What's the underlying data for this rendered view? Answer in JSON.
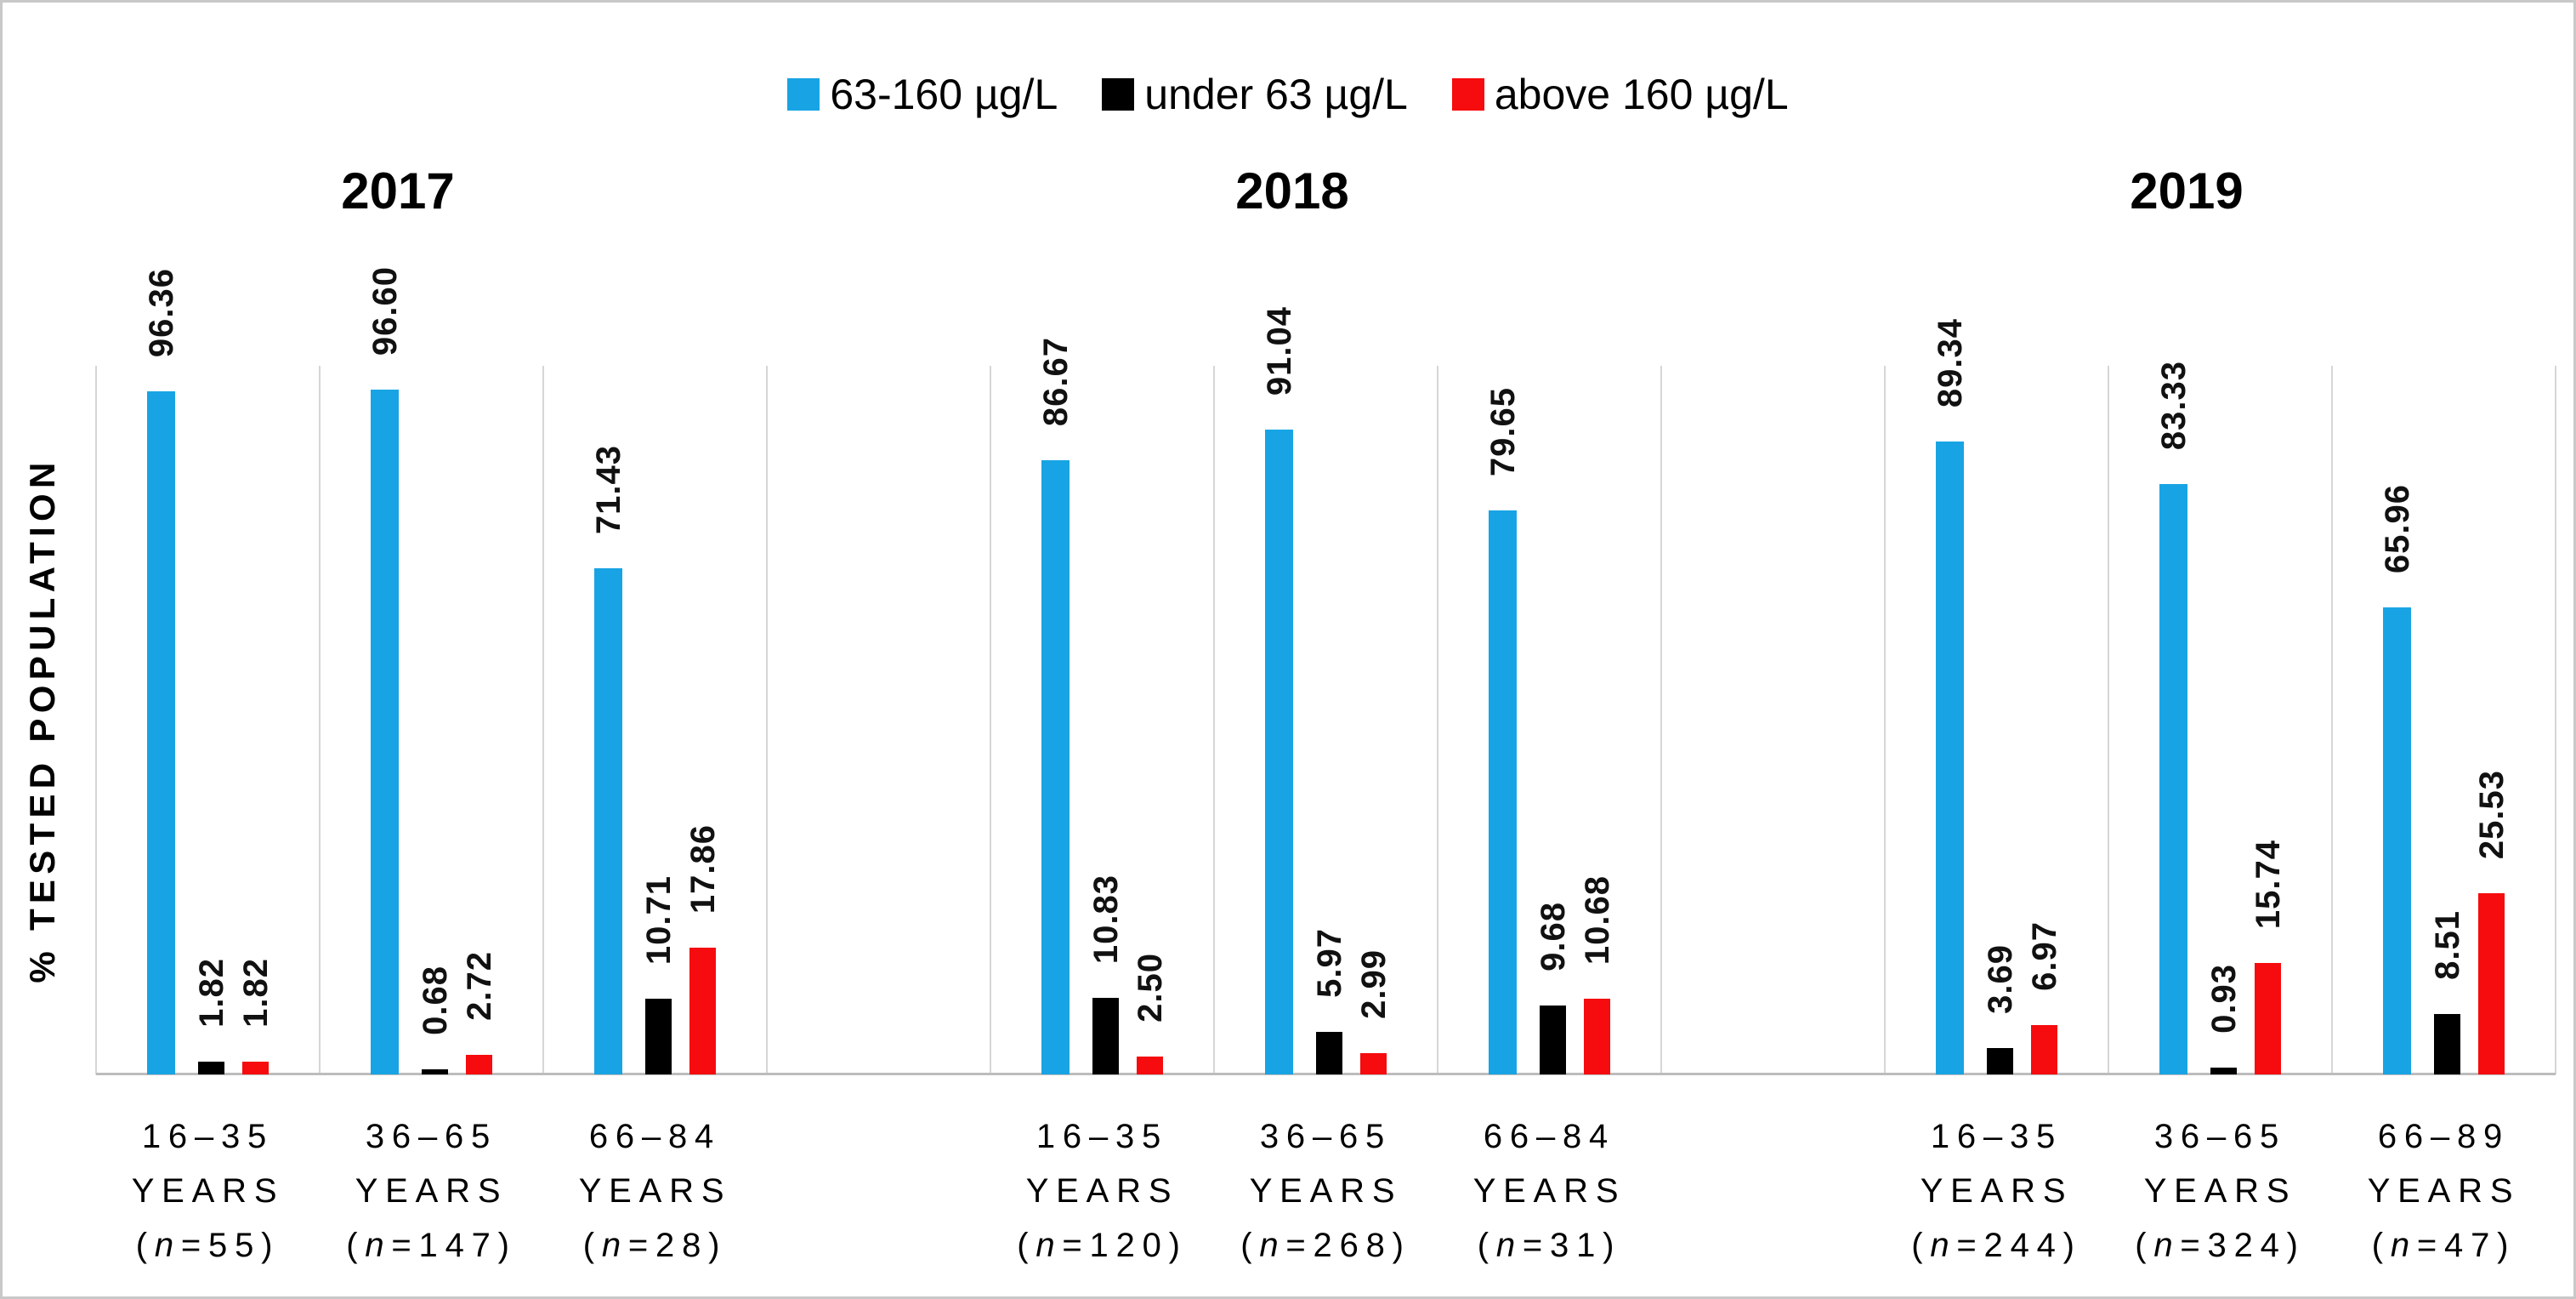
{
  "figure": {
    "background": "#ffffff",
    "border_color": "#c8c8c8"
  },
  "chart_data": {
    "type": "bar",
    "title": "",
    "ylabel": "% TESTED POPULATION",
    "ylim": [
      0,
      100
    ],
    "grid": "vertical-slot-separators",
    "legend_position": "top-center",
    "series": [
      {
        "name": "63-160 µg/L",
        "color": "#18a4e4"
      },
      {
        "name": "under 63 µg/L",
        "color": "#000000"
      },
      {
        "name": "above 160 µg/L",
        "color": "#f60b0e"
      }
    ],
    "sections": [
      {
        "year": "2017",
        "groups": [
          {
            "age_range": "16–35",
            "age_unit": "YEARS",
            "n_label": "(n=55)",
            "values": [
              96.36,
              1.82,
              1.82
            ],
            "value_labels": [
              "96.36",
              "1.82",
              "1.82"
            ]
          },
          {
            "age_range": "36–65",
            "age_unit": "YEARS",
            "n_label": "(n=147)",
            "values": [
              96.6,
              0.68,
              2.72
            ],
            "value_labels": [
              "96.60",
              "0.68",
              "2.72"
            ]
          },
          {
            "age_range": "66–84",
            "age_unit": "YEARS",
            "n_label": "(n=28)",
            "values": [
              71.43,
              10.71,
              17.86
            ],
            "value_labels": [
              "71.43",
              "10.71",
              "17.86"
            ]
          }
        ]
      },
      {
        "year": "2018",
        "groups": [
          {
            "age_range": "16–35",
            "age_unit": "YEARS",
            "n_label": "(n=120)",
            "values": [
              86.67,
              10.83,
              2.5
            ],
            "value_labels": [
              "86.67",
              "10.83",
              "2.50"
            ]
          },
          {
            "age_range": "36–65",
            "age_unit": "YEARS",
            "n_label": "(n=268)",
            "values": [
              91.04,
              5.97,
              2.99
            ],
            "value_labels": [
              "91.04",
              "5.97",
              "2.99"
            ]
          },
          {
            "age_range": "66–84",
            "age_unit": "YEARS",
            "n_label": "(n=31)",
            "values": [
              79.65,
              9.68,
              10.68
            ],
            "value_labels": [
              "79.65",
              "9.68",
              "10.68"
            ]
          }
        ]
      },
      {
        "year": "2019",
        "groups": [
          {
            "age_range": "16–35",
            "age_unit": "YEARS",
            "n_label": "(n=244)",
            "values": [
              89.34,
              3.69,
              6.97
            ],
            "value_labels": [
              "89.34",
              "3.69",
              "6.97"
            ]
          },
          {
            "age_range": "36–65",
            "age_unit": "YEARS",
            "n_label": "(n=324)",
            "values": [
              83.33,
              0.93,
              15.74
            ],
            "value_labels": [
              "83.33",
              "0.93",
              "15.74"
            ]
          },
          {
            "age_range": "66–89",
            "age_unit": "YEARS",
            "n_label": "(n=47)",
            "values": [
              65.96,
              8.51,
              25.53
            ],
            "value_labels": [
              "65.96",
              "8.51",
              "25.53"
            ]
          }
        ]
      }
    ],
    "colors": {
      "gridline": "#d6d6d6",
      "baseline": "#bdbdbd"
    }
  }
}
